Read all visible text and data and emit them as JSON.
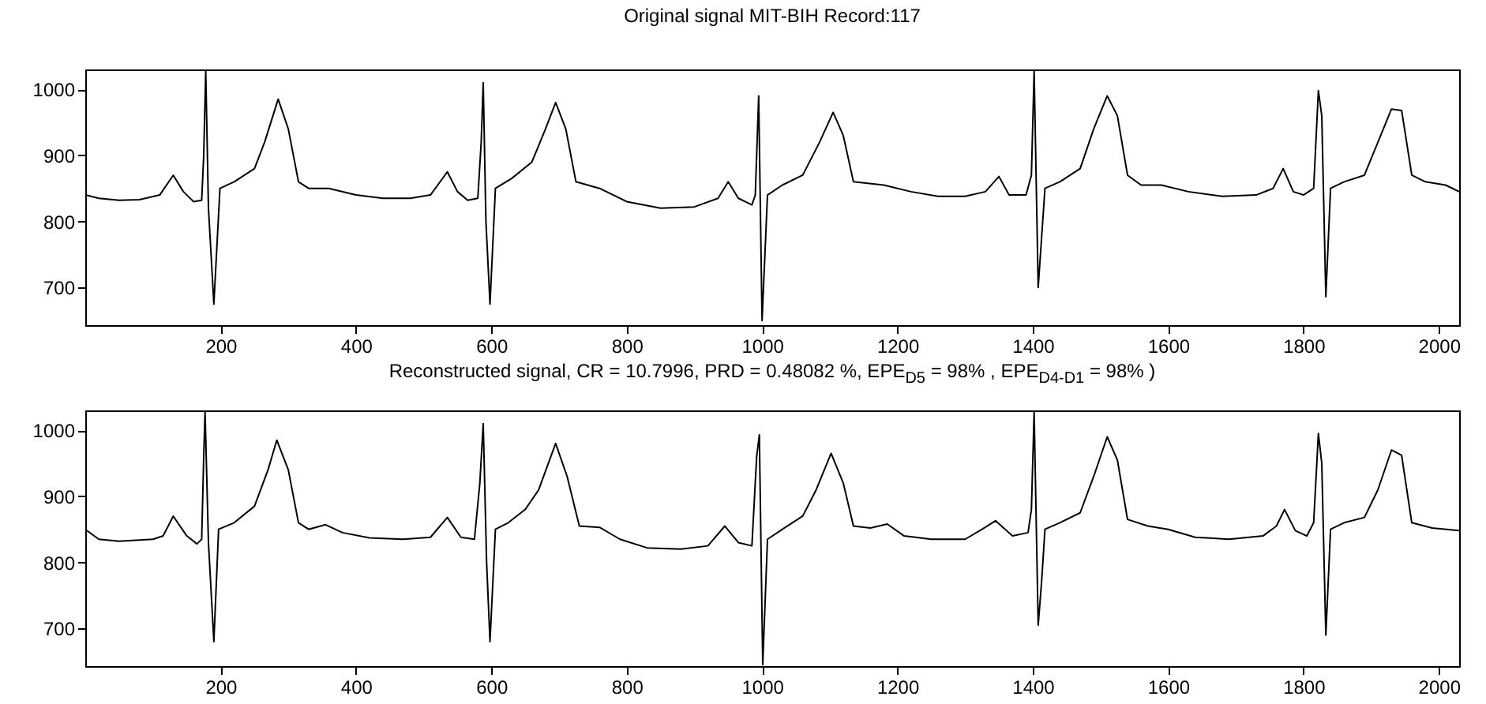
{
  "chart_data": [
    {
      "type": "line",
      "title": "Original signal MIT-BIH Record:117",
      "xlim": [
        0,
        2030
      ],
      "ylim": [
        643,
        1030
      ],
      "xticks": [
        200,
        400,
        600,
        800,
        1000,
        1200,
        1400,
        1600,
        1800,
        2000
      ],
      "yticks": [
        700,
        800,
        900,
        1000
      ],
      "x": [
        0,
        20,
        50,
        80,
        110,
        130,
        145,
        160,
        172,
        175,
        178,
        182,
        190,
        199,
        220,
        250,
        265,
        285,
        300,
        315,
        330,
        360,
        400,
        440,
        480,
        510,
        535,
        550,
        565,
        580,
        585,
        588,
        592,
        598,
        606,
        630,
        660,
        680,
        695,
        710,
        725,
        760,
        800,
        850,
        900,
        935,
        950,
        965,
        985,
        990,
        995,
        1000,
        1008,
        1030,
        1060,
        1085,
        1105,
        1120,
        1135,
        1180,
        1220,
        1260,
        1300,
        1330,
        1350,
        1365,
        1390,
        1398,
        1402,
        1408,
        1412,
        1418,
        1440,
        1470,
        1490,
        1510,
        1525,
        1540,
        1560,
        1590,
        1630,
        1680,
        1730,
        1755,
        1770,
        1785,
        1800,
        1815,
        1822,
        1827,
        1833,
        1840,
        1860,
        1890,
        1910,
        1930,
        1945,
        1960,
        1980,
        2010,
        2030
      ],
      "series": [
        {
          "color": "#000000",
          "values": [
            840,
            835,
            832,
            833,
            840,
            870,
            845,
            830,
            832,
            900,
            1028,
            820,
            675,
            850,
            860,
            880,
            920,
            985,
            940,
            860,
            850,
            850,
            840,
            835,
            835,
            840,
            875,
            845,
            832,
            835,
            920,
            1010,
            800,
            675,
            850,
            865,
            890,
            940,
            980,
            940,
            860,
            850,
            830,
            820,
            822,
            835,
            860,
            835,
            825,
            840,
            990,
            650,
            840,
            855,
            870,
            920,
            965,
            930,
            860,
            855,
            845,
            838,
            838,
            845,
            868,
            840,
            840,
            870,
            1028,
            700,
            760,
            850,
            860,
            880,
            940,
            990,
            960,
            870,
            855,
            855,
            845,
            838,
            840,
            850,
            880,
            845,
            840,
            850,
            998,
            960,
            686,
            850,
            860,
            870,
            920,
            970,
            968,
            870,
            860,
            855,
            845
          ]
        }
      ]
    },
    {
      "type": "line",
      "title": "Reconstructed signal, CR = 10.7996, PRD = 0.48082 %, EPE$_{D5}$ = 98% , EPE$_{D4-D1}$ = 98% )",
      "xlim": [
        0,
        2030
      ],
      "ylim": [
        643,
        1030
      ],
      "xticks": [
        200,
        400,
        600,
        800,
        1000,
        1200,
        1400,
        1600,
        1800,
        2000
      ],
      "yticks": [
        700,
        800,
        900,
        1000
      ],
      "x": [
        0,
        20,
        50,
        100,
        115,
        130,
        150,
        165,
        172,
        175,
        177,
        182,
        190,
        197,
        220,
        250,
        270,
        283,
        300,
        315,
        330,
        355,
        380,
        420,
        470,
        510,
        535,
        555,
        575,
        583,
        588,
        593,
        598,
        606,
        625,
        650,
        670,
        695,
        712,
        730,
        760,
        790,
        830,
        880,
        920,
        945,
        965,
        985,
        992,
        996,
        1001,
        1008,
        1030,
        1060,
        1080,
        1102,
        1120,
        1135,
        1160,
        1185,
        1210,
        1250,
        1300,
        1325,
        1345,
        1370,
        1393,
        1398,
        1402,
        1408,
        1413,
        1418,
        1440,
        1470,
        1490,
        1510,
        1525,
        1540,
        1570,
        1600,
        1640,
        1690,
        1740,
        1760,
        1772,
        1788,
        1805,
        1815,
        1822,
        1827,
        1833,
        1840,
        1860,
        1890,
        1910,
        1930,
        1945,
        1960,
        1990,
        2030
      ],
      "series": [
        {
          "color": "#000000",
          "values": [
            850,
            835,
            832,
            835,
            840,
            870,
            840,
            828,
            835,
            960,
            1028,
            830,
            680,
            850,
            860,
            885,
            940,
            985,
            940,
            860,
            850,
            857,
            845,
            837,
            835,
            838,
            868,
            838,
            835,
            920,
            1010,
            800,
            680,
            850,
            860,
            880,
            910,
            980,
            930,
            855,
            853,
            835,
            822,
            820,
            825,
            855,
            830,
            825,
            960,
            993,
            645,
            835,
            850,
            870,
            910,
            965,
            920,
            855,
            852,
            858,
            840,
            835,
            835,
            850,
            863,
            840,
            845,
            880,
            1028,
            705,
            770,
            850,
            860,
            875,
            930,
            990,
            955,
            865,
            855,
            850,
            838,
            835,
            840,
            855,
            880,
            848,
            840,
            860,
            995,
            950,
            690,
            850,
            860,
            868,
            910,
            970,
            962,
            860,
            852,
            848
          ]
        }
      ]
    }
  ]
}
